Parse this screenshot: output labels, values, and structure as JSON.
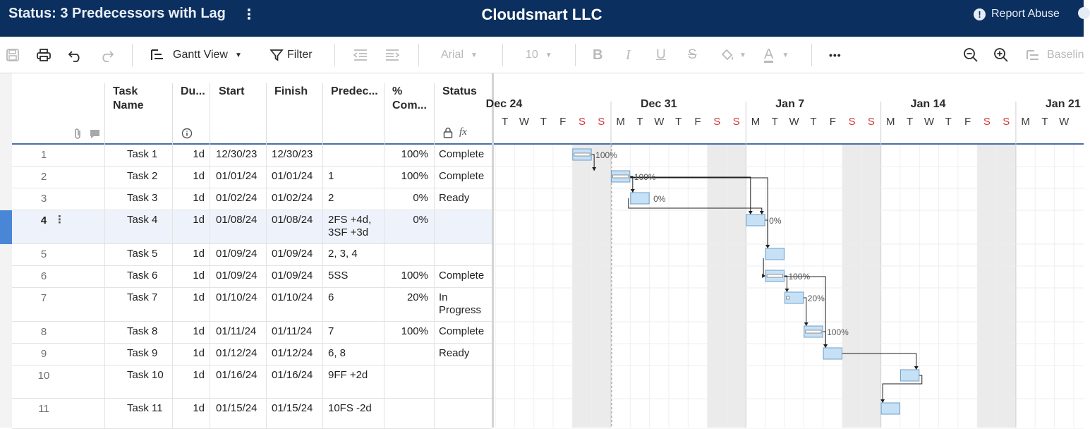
{
  "topbar": {
    "sheet_title": "Status: 3 Predecessors with Lag",
    "menu_glyph": "⋮",
    "org_name": "Cloudsmart LLC",
    "report_abuse": "Report Abuse"
  },
  "toolbar": {
    "view_label": "Gantt View",
    "filter_label": "Filter",
    "font_name": "Arial",
    "font_size": "10",
    "baseline_label": "Baselin",
    "more_glyph": "•••"
  },
  "columns": {
    "task_name": "Task Name",
    "duration": "Du...",
    "start": "Start",
    "finish": "Finish",
    "predecessors": "Predec...",
    "percent_complete": "% Com...",
    "status": "Status"
  },
  "rows": [
    {
      "num": "1",
      "task": "Task 1",
      "dur": "1d",
      "start": "12/30/23",
      "finish": "12/30/23",
      "pred": "",
      "pct": "100%",
      "status": "Complete"
    },
    {
      "num": "2",
      "task": "Task 2",
      "dur": "1d",
      "start": "01/01/24",
      "finish": "01/01/24",
      "pred": "1",
      "pct": "100%",
      "status": "Complete"
    },
    {
      "num": "3",
      "task": "Task 3",
      "dur": "1d",
      "start": "01/02/24",
      "finish": "01/02/24",
      "pred": "2",
      "pct": "0%",
      "status": "Ready"
    },
    {
      "num": "4",
      "task": "Task 4",
      "dur": "1d",
      "start": "01/08/24",
      "finish": "01/08/24",
      "pred": "2FS +4d, 3SF +3d",
      "pct": "0%",
      "status": ""
    },
    {
      "num": "5",
      "task": "Task 5",
      "dur": "1d",
      "start": "01/09/24",
      "finish": "01/09/24",
      "pred": "2, 3, 4",
      "pct": "",
      "status": ""
    },
    {
      "num": "6",
      "task": "Task 6",
      "dur": "1d",
      "start": "01/09/24",
      "finish": "01/09/24",
      "pred": "5SS",
      "pct": "100%",
      "status": "Complete"
    },
    {
      "num": "7",
      "task": "Task 7",
      "dur": "1d",
      "start": "01/10/24",
      "finish": "01/10/24",
      "pred": "6",
      "pct": "20%",
      "status": "In Progress"
    },
    {
      "num": "8",
      "task": "Task 8",
      "dur": "1d",
      "start": "01/11/24",
      "finish": "01/11/24",
      "pred": "7",
      "pct": "100%",
      "status": "Complete"
    },
    {
      "num": "9",
      "task": "Task 9",
      "dur": "1d",
      "start": "01/12/24",
      "finish": "01/12/24",
      "pred": "6, 8",
      "pct": "",
      "status": "Ready"
    },
    {
      "num": "10",
      "task": "Task 10",
      "dur": "1d",
      "start": "01/16/24",
      "finish": "01/16/24",
      "pred": "9FF +2d",
      "pct": "",
      "status": ""
    },
    {
      "num": "11",
      "task": "Task 11",
      "dur": "1d",
      "start": "01/15/24",
      "finish": "01/15/24",
      "pred": "10FS -2d",
      "pct": "",
      "status": ""
    }
  ],
  "gantt": {
    "weeks": [
      "Dec 24",
      "Dec 31",
      "Jan 7",
      "Jan 14",
      "Jan 21"
    ],
    "days": [
      "T",
      "W",
      "T",
      "F",
      "S",
      "S",
      "M",
      "T",
      "W",
      "T",
      "F",
      "S",
      "S",
      "M",
      "T",
      "W",
      "T",
      "F",
      "S",
      "S",
      "M",
      "T",
      "W",
      "T",
      "F",
      "S",
      "S",
      "M",
      "T",
      "W"
    ],
    "bar_pct_labels": [
      "100%",
      "100%",
      "0%",
      "0%",
      "",
      "100%",
      "20%",
      "100%",
      "",
      "",
      ""
    ],
    "colors": {
      "bar_fill": "#c6e1f6",
      "bar_border": "#6e9fca",
      "weekend": "#ebebeb",
      "weekend_day_letter": "#d23a3a",
      "header": "#0b2f5e"
    }
  }
}
